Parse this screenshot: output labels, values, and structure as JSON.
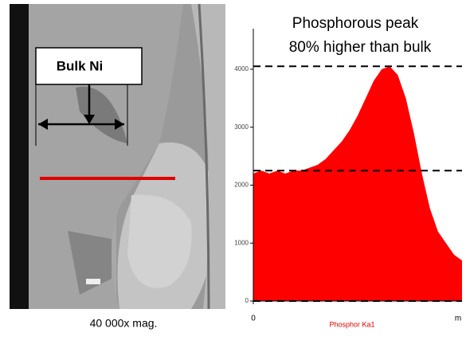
{
  "image": {
    "label": "Bulk Ni",
    "caption": "40 000x mag."
  },
  "chart_data": {
    "type": "area",
    "title_lines": [
      "Phosphorous peak",
      "80% higher than bulk"
    ],
    "x_label": "Phosphor Ka1",
    "x_unit": "m",
    "x": [
      0,
      1,
      2,
      3,
      4,
      5,
      6,
      7,
      8,
      9,
      10,
      11,
      12,
      13,
      14,
      15,
      16,
      17,
      18,
      19,
      20,
      21,
      22,
      23,
      24,
      25,
      26
    ],
    "series": [
      {
        "name": "Phosphor Ka1",
        "color": "#ff0000",
        "values": [
          2200,
          2250,
          2200,
          2250,
          2200,
          2250,
          2250,
          2300,
          2350,
          2450,
          2600,
          2750,
          2950,
          3200,
          3500,
          3800,
          4000,
          4050,
          3900,
          3500,
          2900,
          2200,
          1600,
          1200,
          1000,
          800,
          700
        ]
      }
    ],
    "xlim": [
      0,
      26
    ],
    "xticks": [
      0
    ],
    "ylim": [
      0,
      4700
    ],
    "yticks": [
      0,
      1000,
      2000,
      3000,
      4000
    ],
    "reference_lines": [
      2250,
      4050
    ]
  }
}
